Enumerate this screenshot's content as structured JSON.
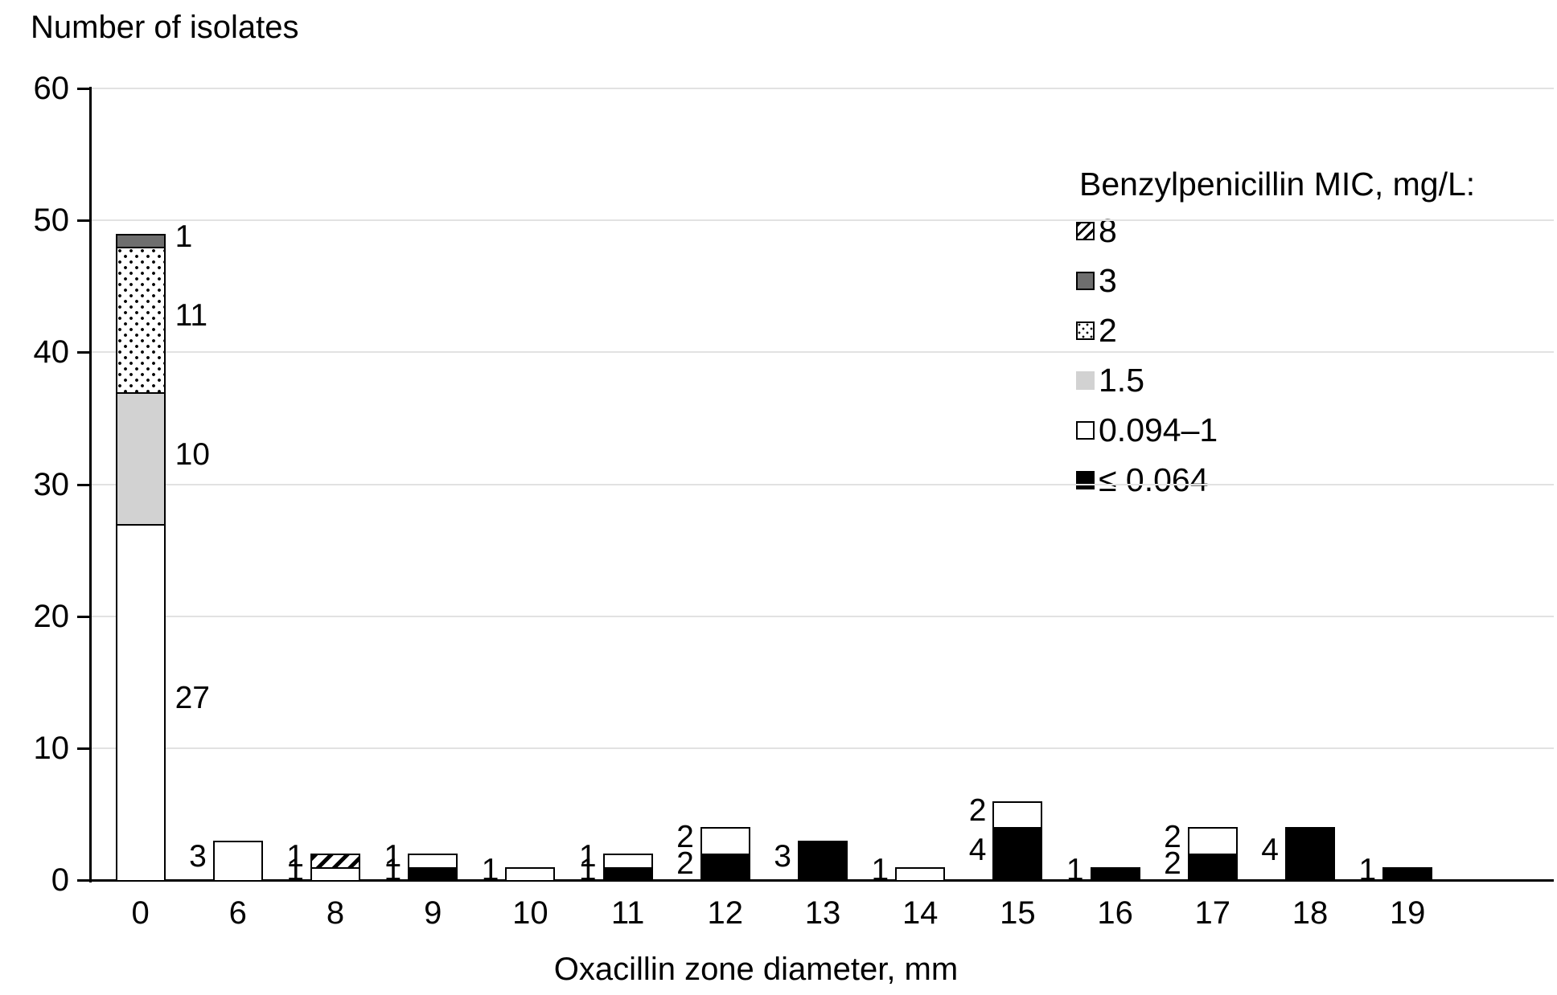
{
  "page": {
    "background": "#ffffff"
  },
  "chart_data": {
    "type": "bar",
    "stacked": true,
    "y_axis_title": "Number of isolates",
    "x_axis_title": "Oxacillin zone diameter, mm",
    "ylim": [
      0,
      60
    ],
    "yticks": [
      0,
      10,
      20,
      30,
      40,
      50,
      60
    ],
    "grid": "horizontal-light",
    "gridline_color": "#e2e2e2",
    "axis_color": "#000000",
    "categories": [
      "0",
      "6",
      "8",
      "9",
      "10",
      "11",
      "12",
      "13",
      "14",
      "15",
      "16",
      "17",
      "18",
      "19",
      ""
    ],
    "data_label_side_by_category": [
      "right",
      "left",
      "left",
      "left",
      "left",
      "left",
      "left",
      "left",
      "left",
      "left",
      "left",
      "left",
      "left",
      "left",
      "left"
    ],
    "series": [
      {
        "name": "≤ 0.064",
        "color": "#000000",
        "pattern": "none",
        "swatch_border": true,
        "values": [
          0,
          0,
          0,
          1,
          0,
          1,
          2,
          3,
          0,
          4,
          1,
          2,
          4,
          1,
          0
        ]
      },
      {
        "name": "0.094–1",
        "color": "#ffffff",
        "pattern": "none",
        "swatch_border": true,
        "values": [
          27,
          3,
          1,
          1,
          1,
          1,
          2,
          0,
          1,
          2,
          0,
          2,
          0,
          0,
          0
        ]
      },
      {
        "name": "1.5",
        "color": "#d2d2d2",
        "pattern": "none",
        "swatch_border": false,
        "values": [
          10,
          0,
          0,
          0,
          0,
          0,
          0,
          0,
          0,
          0,
          0,
          0,
          0,
          0,
          0
        ]
      },
      {
        "name": "2",
        "color": "#ffffff",
        "pattern": "dots",
        "swatch_border": true,
        "values": [
          11,
          0,
          0,
          0,
          0,
          0,
          0,
          0,
          0,
          0,
          0,
          0,
          0,
          0,
          0
        ]
      },
      {
        "name": "3",
        "color": "#6e6e6e",
        "pattern": "none",
        "swatch_border": true,
        "values": [
          1,
          0,
          0,
          0,
          0,
          0,
          0,
          0,
          0,
          0,
          0,
          0,
          0,
          0,
          0
        ]
      },
      {
        "name": "8",
        "color": "#ffffff",
        "pattern": "hatch",
        "swatch_border": true,
        "values": [
          0,
          0,
          1,
          0,
          0,
          0,
          0,
          0,
          0,
          0,
          0,
          0,
          0,
          0,
          0
        ]
      }
    ],
    "legend": {
      "title": "Benzylpenicillin MIC, mg/L:",
      "position": "upper-right",
      "entries": [
        "8",
        "3",
        "2",
        "1.5",
        "0.094–1",
        "≤ 0.064"
      ]
    }
  }
}
